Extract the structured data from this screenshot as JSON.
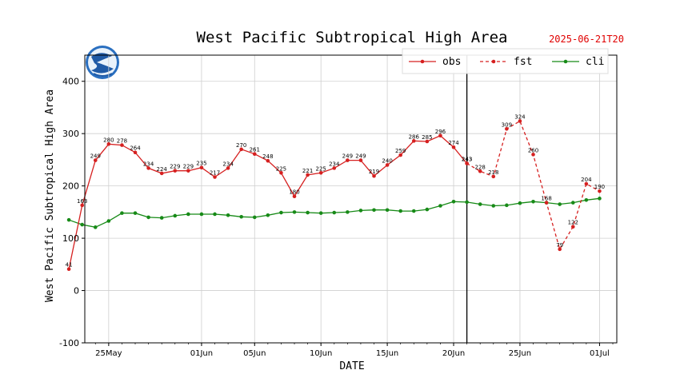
{
  "chart_data": {
    "type": "line",
    "title": "West Pacific Subtropical High Area",
    "timestamp": "2025-06-21T20",
    "xlabel": "DATE",
    "ylabel": "West Pacific Subtropical High Area",
    "ylim": [
      -100,
      450
    ],
    "yticks": [
      -100,
      0,
      100,
      200,
      300,
      400
    ],
    "xlim_days": [
      -1.8,
      38.3
    ],
    "xticks": [
      {
        "label": "25May",
        "day": 0
      },
      {
        "label": "01Jun",
        "day": 7
      },
      {
        "label": "05Jun",
        "day": 11
      },
      {
        "label": "10Jun",
        "day": 16
      },
      {
        "label": "15Jun",
        "day": 21
      },
      {
        "label": "20Jun",
        "day": 26
      },
      {
        "label": "25Jun",
        "day": 31
      },
      {
        "label": "01Jul",
        "day": 37
      }
    ],
    "grid": true,
    "legend_position": "top-right",
    "divider_day": 27,
    "colors": {
      "obs": "#d62020",
      "fst": "#d62020",
      "cli": "#178a17",
      "divider": "#000000"
    },
    "series": [
      {
        "name": "obs",
        "style": "solid",
        "x": [
          -3,
          -2,
          -1,
          0,
          1,
          2,
          3,
          4,
          5,
          6,
          7,
          8,
          9,
          10,
          11,
          12,
          13,
          14,
          15,
          16,
          17,
          18,
          19,
          20,
          21,
          22,
          23,
          24,
          25,
          26,
          27
        ],
        "y": [
          41,
          163,
          249,
          280,
          278,
          264,
          234,
          224,
          229,
          229,
          235,
          217,
          234,
          270,
          261,
          248,
          225,
          180,
          221,
          225,
          234,
          249,
          249,
          219,
          240,
          259,
          286,
          285,
          296,
          274,
          243
        ]
      },
      {
        "name": "fst",
        "style": "dashed",
        "x": [
          27,
          28,
          29,
          30,
          31,
          32,
          33,
          34,
          35,
          36,
          37
        ],
        "y": [
          243,
          228,
          218,
          309,
          324,
          260,
          168,
          79,
          122,
          204,
          190
        ]
      },
      {
        "name": "cli",
        "style": "solid",
        "x": [
          -3,
          -2,
          -1,
          0,
          1,
          2,
          3,
          4,
          5,
          6,
          7,
          8,
          9,
          10,
          11,
          12,
          13,
          14,
          15,
          16,
          17,
          18,
          19,
          20,
          21,
          22,
          23,
          24,
          25,
          26,
          27,
          28,
          29,
          30,
          31,
          32,
          33,
          34,
          35,
          36,
          37
        ],
        "y": [
          135,
          126,
          121,
          133,
          148,
          148,
          140,
          139,
          143,
          146,
          146,
          146,
          144,
          141,
          140,
          144,
          149,
          150,
          149,
          148,
          149,
          150,
          153,
          154,
          154,
          152,
          152,
          155,
          162,
          170,
          169,
          165,
          162,
          163,
          167,
          170,
          168,
          165,
          168,
          173,
          176
        ]
      }
    ]
  }
}
